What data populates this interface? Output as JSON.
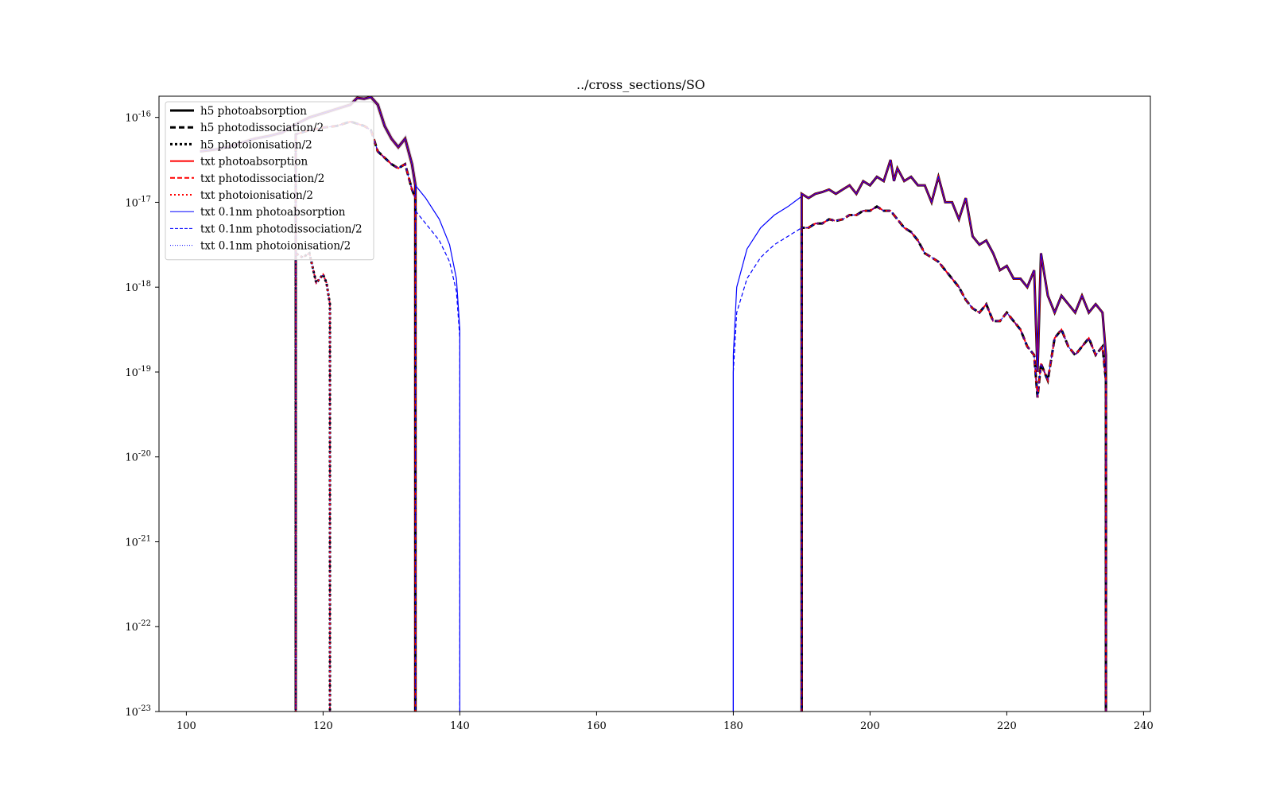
{
  "chart_data": {
    "type": "line",
    "title": "../cross_sections/SO",
    "xlabel": "",
    "ylabel": "",
    "xlim": [
      96,
      241
    ],
    "ylim_log10": [
      -23,
      -15.75
    ],
    "y_scale": "log",
    "x_ticks": [
      100,
      120,
      140,
      160,
      180,
      200,
      220,
      240
    ],
    "y_ticks": [
      {
        "exp": -16,
        "label_base": "10",
        "label_exp": "-16"
      },
      {
        "exp": -17,
        "label_base": "10",
        "label_exp": "-17"
      },
      {
        "exp": -18,
        "label_base": "10",
        "label_exp": "-18"
      },
      {
        "exp": -19,
        "label_base": "10",
        "label_exp": "-19"
      },
      {
        "exp": -20,
        "label_base": "10",
        "label_exp": "-20"
      },
      {
        "exp": -21,
        "label_base": "10",
        "label_exp": "-21"
      },
      {
        "exp": -22,
        "label_base": "10",
        "label_exp": "-22"
      },
      {
        "exp": -23,
        "label_base": "10",
        "label_exp": "-23"
      }
    ],
    "grid": false,
    "legend_position": "top-left",
    "legend": [
      {
        "label": "h5 photoabsorption",
        "color": "#000000",
        "style": "solid",
        "width": 3
      },
      {
        "label": "h5 photodissociation/2",
        "color": "#000000",
        "style": "dashed",
        "width": 3
      },
      {
        "label": "h5 photoionisation/2",
        "color": "#000000",
        "style": "dotted",
        "width": 3
      },
      {
        "label": "txt photoabsorption",
        "color": "#ff0000",
        "style": "solid",
        "width": 2
      },
      {
        "label": "txt photodissociation/2",
        "color": "#ff0000",
        "style": "dashed",
        "width": 2
      },
      {
        "label": "txt photoionisation/2",
        "color": "#ff0000",
        "style": "dotted",
        "width": 2
      },
      {
        "label": "txt 0.1nm photoabsorption",
        "color": "#0000ff",
        "style": "solid",
        "width": 1
      },
      {
        "label": "txt 0.1nm photodissociation/2",
        "color": "#0000ff",
        "style": "dashed",
        "width": 1
      },
      {
        "label": "txt 0.1nm photoionisation/2",
        "color": "#0000ff",
        "style": "dotted",
        "width": 1
      }
    ],
    "series": [
      {
        "name": "photoabsorption (band 1)",
        "x": [
          102,
          104,
          106,
          108,
          110,
          112,
          114,
          116,
          118,
          120,
          122,
          124,
          125,
          126,
          127,
          128,
          129,
          130,
          131,
          132,
          133,
          133.5
        ],
        "log10_y": [
          -16.4,
          -16.38,
          -16.35,
          -16.3,
          -16.25,
          -16.22,
          -16.18,
          -16.08,
          -16.0,
          -15.95,
          -15.9,
          -15.85,
          -15.77,
          -15.78,
          -15.76,
          -15.85,
          -16.1,
          -16.25,
          -16.35,
          -16.25,
          -16.55,
          -16.8
        ]
      },
      {
        "name": "photodissociation/2 (band 1)",
        "x": [
          116,
          118,
          120,
          122,
          124,
          126,
          127,
          128,
          130,
          131,
          132,
          133,
          133.5
        ],
        "log10_y": [
          -16.2,
          -16.15,
          -16.12,
          -16.1,
          -16.05,
          -16.1,
          -16.15,
          -16.4,
          -16.55,
          -16.6,
          -16.55,
          -16.85,
          -16.95
        ]
      },
      {
        "name": "photoionisation/2 (band 1)",
        "x": [
          116,
          117,
          118,
          119,
          120,
          120.5,
          121
        ],
        "log10_y": [
          -17.6,
          -17.65,
          -17.6,
          -17.95,
          -17.85,
          -17.95,
          -18.2
        ]
      },
      {
        "name": "txt 0.1nm photoabsorption (tail 1)",
        "x": [
          133.5,
          135,
          137,
          138.5,
          139.5,
          140
        ],
        "log10_y": [
          -16.8,
          -16.95,
          -17.2,
          -17.5,
          -17.9,
          -18.5
        ]
      },
      {
        "name": "txt 0.1nm photodissociation/2 (tail 1)",
        "x": [
          133.5,
          135,
          137,
          138.5,
          139.5,
          140
        ],
        "log10_y": [
          -17.1,
          -17.25,
          -17.45,
          -17.7,
          -18.05,
          -18.6
        ]
      },
      {
        "name": "txt 0.1nm photoabsorption (tail 2)",
        "x": [
          180,
          180.5,
          182,
          184,
          186,
          188,
          190
        ],
        "log10_y": [
          -18.8,
          -18.0,
          -17.55,
          -17.3,
          -17.15,
          -17.05,
          -16.93
        ]
      },
      {
        "name": "txt 0.1nm photodissociation/2 (tail 2)",
        "x": [
          180,
          180.5,
          182,
          184,
          186,
          188,
          190
        ],
        "log10_y": [
          -19.0,
          -18.3,
          -17.9,
          -17.65,
          -17.5,
          -17.4,
          -17.3
        ]
      },
      {
        "name": "photoabsorption (band 2)",
        "x": [
          190,
          191,
          192,
          193,
          194,
          195,
          196,
          197,
          198,
          199,
          200,
          201,
          202,
          203,
          203.5,
          204,
          205,
          206,
          207,
          208,
          209,
          210,
          211,
          212,
          213,
          214,
          215,
          216,
          217,
          218,
          219,
          220,
          221,
          222,
          223,
          224,
          224.5,
          225,
          226,
          227,
          228,
          229,
          230,
          231,
          232,
          233,
          234,
          234.5
        ],
        "log10_y": [
          -16.9,
          -16.95,
          -16.9,
          -16.88,
          -16.85,
          -16.9,
          -16.85,
          -16.8,
          -16.9,
          -16.75,
          -16.8,
          -16.7,
          -16.75,
          -16.5,
          -16.75,
          -16.6,
          -16.75,
          -16.7,
          -16.8,
          -16.8,
          -17.0,
          -16.7,
          -17.0,
          -17.0,
          -17.2,
          -16.95,
          -17.4,
          -17.5,
          -17.45,
          -17.6,
          -17.8,
          -17.75,
          -17.9,
          -17.9,
          -18.0,
          -17.8,
          -19.0,
          -17.6,
          -18.1,
          -18.3,
          -18.1,
          -18.2,
          -18.3,
          -18.1,
          -18.3,
          -18.2,
          -18.3,
          -18.8
        ]
      },
      {
        "name": "photodissociation/2 (band 2)",
        "x": [
          190,
          191,
          192,
          193,
          194,
          195,
          196,
          197,
          198,
          199,
          200,
          201,
          202,
          203,
          204,
          205,
          206,
          207,
          208,
          209,
          210,
          211,
          212,
          213,
          214,
          215,
          216,
          217,
          218,
          219,
          220,
          221,
          222,
          223,
          224,
          224.5,
          225,
          226,
          227,
          228,
          229,
          230,
          231,
          232,
          233,
          234,
          234.5
        ],
        "log10_y": [
          -17.3,
          -17.3,
          -17.25,
          -17.25,
          -17.2,
          -17.22,
          -17.2,
          -17.15,
          -17.15,
          -17.1,
          -17.1,
          -17.05,
          -17.1,
          -17.1,
          -17.2,
          -17.3,
          -17.35,
          -17.45,
          -17.6,
          -17.65,
          -17.7,
          -17.8,
          -17.9,
          -18.0,
          -18.15,
          -18.25,
          -18.3,
          -18.2,
          -18.4,
          -18.4,
          -18.3,
          -18.4,
          -18.5,
          -18.7,
          -18.8,
          -19.3,
          -18.9,
          -19.1,
          -18.6,
          -18.5,
          -18.7,
          -18.8,
          -18.7,
          -18.6,
          -18.8,
          -18.7,
          -19.1
        ]
      }
    ]
  }
}
